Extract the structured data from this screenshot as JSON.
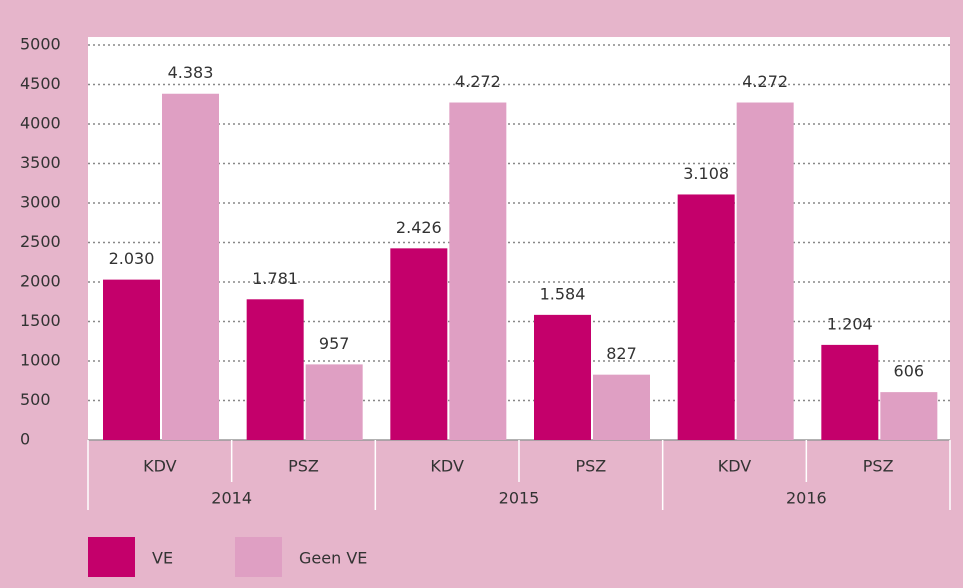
{
  "chart_data": {
    "type": "bar",
    "categories": [
      "KDV",
      "PSZ",
      "KDV",
      "PSZ",
      "KDV",
      "PSZ"
    ],
    "groups": [
      "2014",
      "2015",
      "2016"
    ],
    "series": [
      {
        "name": "VE",
        "color": "#c4006b",
        "values": [
          2030,
          1781,
          2426,
          1584,
          3108,
          1204
        ],
        "value_labels": [
          "2.030",
          "1.781",
          "2.426",
          "1.584",
          "3.108",
          "1.204"
        ]
      },
      {
        "name": "Geen VE",
        "color": "#df9fc3",
        "values": [
          4383,
          957,
          4272,
          827,
          4272,
          606
        ],
        "value_labels": [
          "4.383",
          "957",
          "4.272",
          "827",
          "4.272",
          "606"
        ]
      }
    ],
    "ylim": [
      0,
      5000
    ],
    "yticks": [
      0,
      500,
      1000,
      1500,
      2000,
      2500,
      3000,
      3500,
      4000,
      4500,
      5000
    ],
    "grid": true
  }
}
